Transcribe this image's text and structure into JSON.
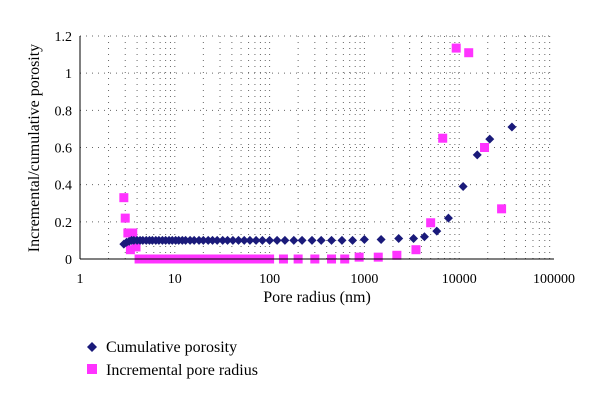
{
  "chart_data": {
    "type": "scatter",
    "title": "",
    "xlabel": "Pore radius (nm)",
    "ylabel": "Incremental/cumulative porosity",
    "x_scale": "log",
    "xlim": [
      1,
      100000
    ],
    "ylim": [
      0,
      1.2
    ],
    "x_ticks": [
      1,
      10,
      100,
      1000,
      10000,
      100000
    ],
    "x_tick_labels": [
      "1",
      "10",
      "100",
      "1000",
      "10000",
      "100000"
    ],
    "y_ticks": [
      0,
      0.2,
      0.4,
      0.6,
      0.8,
      1,
      1.2
    ],
    "y_tick_labels": [
      "0",
      "0.2",
      "0.4",
      "0.6",
      "0.8",
      "1",
      "1.2"
    ],
    "grid": "dotted",
    "legend_position": "bottom",
    "series": [
      {
        "name": "Cumulative porosity",
        "color": "#1a1a7a",
        "marker": "diamond",
        "x": [
          2.9,
          3.1,
          3.3,
          3.5,
          3.7,
          4.0,
          4.3,
          4.6,
          5.0,
          5.4,
          5.8,
          6.3,
          6.8,
          7.4,
          8.0,
          8.7,
          9.4,
          10.2,
          11,
          12,
          13,
          14.5,
          16,
          18,
          20,
          22.5,
          25,
          28,
          32,
          36,
          41,
          47,
          54,
          62,
          72,
          84,
          100,
          120,
          145,
          180,
          220,
          280,
          350,
          450,
          580,
          750,
          1000,
          1500,
          2300,
          3300,
          4300,
          5800,
          7700,
          11000,
          15500,
          21000,
          36000
        ],
        "y": [
          0.08,
          0.09,
          0.095,
          0.1,
          0.1,
          0.1,
          0.1,
          0.1,
          0.1,
          0.1,
          0.1,
          0.1,
          0.1,
          0.1,
          0.1,
          0.1,
          0.1,
          0.1,
          0.1,
          0.1,
          0.1,
          0.1,
          0.1,
          0.1,
          0.1,
          0.1,
          0.1,
          0.1,
          0.1,
          0.1,
          0.1,
          0.1,
          0.1,
          0.1,
          0.1,
          0.1,
          0.1,
          0.1,
          0.1,
          0.1,
          0.1,
          0.1,
          0.1,
          0.1,
          0.1,
          0.1,
          0.105,
          0.105,
          0.11,
          0.11,
          0.12,
          0.15,
          0.22,
          0.39,
          0.56,
          0.645,
          0.71
        ]
      },
      {
        "name": "Incremental pore radius",
        "color": "#ff33ff",
        "marker": "square",
        "x": [
          2.9,
          3.0,
          3.2,
          3.4,
          3.6,
          3.9,
          4.2,
          4.6,
          5.0,
          5.5,
          6.0,
          6.6,
          7.2,
          8.0,
          9.0,
          10,
          11,
          12.5,
          14,
          16,
          18,
          20,
          23,
          26,
          30,
          35,
          40,
          47,
          55,
          65,
          75,
          90,
          100,
          140,
          200,
          300,
          450,
          620,
          880,
          1400,
          2200,
          3500,
          5000,
          6700,
          9300,
          12600,
          18500,
          28000
        ],
        "y": [
          0.33,
          0.22,
          0.14,
          0.05,
          0.14,
          0.065,
          0,
          0,
          0,
          0,
          0,
          0,
          0,
          0,
          0,
          0,
          0,
          0,
          0,
          0,
          0,
          0,
          0,
          0,
          0,
          0,
          0,
          0,
          0,
          0,
          0,
          0,
          0,
          0,
          0,
          0,
          0,
          0,
          0.01,
          0.01,
          0.02,
          0.05,
          0.195,
          0.65,
          1.135,
          1.11,
          0.6,
          0.27
        ]
      }
    ]
  }
}
